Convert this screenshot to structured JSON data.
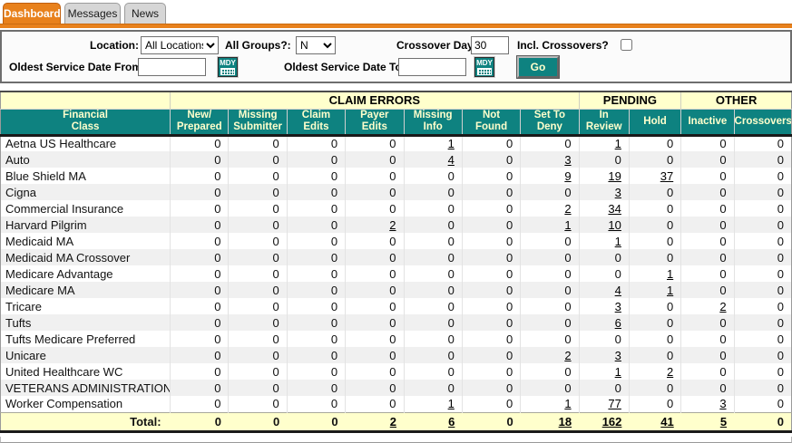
{
  "tabs": [
    {
      "label": "Dashboard",
      "active": true
    },
    {
      "label": "Messages",
      "active": false
    },
    {
      "label": "News",
      "active": false
    }
  ],
  "filters": {
    "location_label": "Location:",
    "location_value": "All Locations",
    "all_groups_label": "All Groups?:",
    "all_groups_value": "N",
    "crossover_days_label": "Crossover Days:",
    "crossover_days_value": "30",
    "incl_crossovers_label": "Incl. Crossovers?",
    "incl_crossovers_checked": false,
    "date_from_label": "Oldest Service Date From:",
    "date_from_value": "",
    "date_to_label": "Oldest Service Date To:",
    "date_to_value": "",
    "mdy_label": "MDY",
    "go_label": "Go"
  },
  "table": {
    "group_headers": [
      {
        "label": "",
        "span": 1
      },
      {
        "label": "CLAIM ERRORS",
        "span": 7
      },
      {
        "label": "PENDING",
        "span": 2
      },
      {
        "label": "OTHER",
        "span": 2
      }
    ],
    "columns": [
      "Financial\nClass",
      "New/\nPrepared",
      "Missing\nSubmitter",
      "Claim\nEdits",
      "Payer\nEdits",
      "Missing\nInfo",
      "Not\nFound",
      "Set To\nDeny",
      "In\nReview",
      "Hold",
      "Inactive",
      "Crossovers"
    ],
    "rows": [
      {
        "name": "Aetna US Healthcare",
        "values": [
          0,
          0,
          0,
          0,
          1,
          0,
          0,
          1,
          0,
          0,
          0
        ]
      },
      {
        "name": "Auto",
        "values": [
          0,
          0,
          0,
          0,
          4,
          0,
          3,
          0,
          0,
          0,
          0
        ]
      },
      {
        "name": "Blue Shield MA",
        "values": [
          0,
          0,
          0,
          0,
          0,
          0,
          9,
          19,
          37,
          0,
          0
        ]
      },
      {
        "name": "Cigna",
        "values": [
          0,
          0,
          0,
          0,
          0,
          0,
          0,
          3,
          0,
          0,
          0
        ]
      },
      {
        "name": "Commercial Insurance",
        "values": [
          0,
          0,
          0,
          0,
          0,
          0,
          2,
          34,
          0,
          0,
          0
        ]
      },
      {
        "name": "Harvard Pilgrim",
        "values": [
          0,
          0,
          0,
          2,
          0,
          0,
          1,
          10,
          0,
          0,
          0
        ]
      },
      {
        "name": "Medicaid MA",
        "values": [
          0,
          0,
          0,
          0,
          0,
          0,
          0,
          1,
          0,
          0,
          0
        ]
      },
      {
        "name": "Medicaid MA Crossover",
        "values": [
          0,
          0,
          0,
          0,
          0,
          0,
          0,
          0,
          0,
          0,
          0
        ]
      },
      {
        "name": "Medicare Advantage",
        "values": [
          0,
          0,
          0,
          0,
          0,
          0,
          0,
          0,
          1,
          0,
          0
        ]
      },
      {
        "name": "Medicare MA",
        "values": [
          0,
          0,
          0,
          0,
          0,
          0,
          0,
          4,
          1,
          0,
          0
        ]
      },
      {
        "name": "Tricare",
        "values": [
          0,
          0,
          0,
          0,
          0,
          0,
          0,
          3,
          0,
          2,
          0
        ]
      },
      {
        "name": "Tufts",
        "values": [
          0,
          0,
          0,
          0,
          0,
          0,
          0,
          6,
          0,
          0,
          0
        ]
      },
      {
        "name": "Tufts Medicare Preferred",
        "values": [
          0,
          0,
          0,
          0,
          0,
          0,
          0,
          0,
          0,
          0,
          0
        ]
      },
      {
        "name": "Unicare",
        "values": [
          0,
          0,
          0,
          0,
          0,
          0,
          2,
          3,
          0,
          0,
          0
        ]
      },
      {
        "name": "United Healthcare WC",
        "values": [
          0,
          0,
          0,
          0,
          0,
          0,
          0,
          1,
          2,
          0,
          0
        ]
      },
      {
        "name": "VETERANS ADMINISTRATION",
        "values": [
          0,
          0,
          0,
          0,
          0,
          0,
          0,
          0,
          0,
          0,
          0
        ]
      },
      {
        "name": "Worker Compensation",
        "values": [
          0,
          0,
          0,
          0,
          1,
          0,
          1,
          77,
          0,
          3,
          0
        ]
      }
    ],
    "total_label": "Total:",
    "totals": [
      0,
      0,
      0,
      2,
      6,
      0,
      18,
      162,
      41,
      5,
      0
    ]
  },
  "colors": {
    "accent_orange": "#E8811C",
    "teal_header": "#0E8280",
    "pale_yellow": "#FFFFCC",
    "row_alternate": "#F0F0F0",
    "link": "#000000"
  }
}
